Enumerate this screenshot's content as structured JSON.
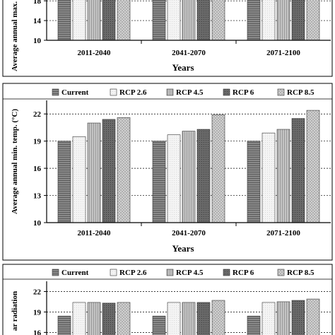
{
  "chart_data": [
    {
      "type": "bar",
      "ylabel": "Average annual max. temp. (°C)",
      "xlabel": "Years",
      "categories": [
        "2011-2040",
        "2041-2070",
        "2071-2100"
      ],
      "yticks": [
        "10",
        "14",
        "18"
      ],
      "ylim": [
        10,
        19.6
      ],
      "legend": false,
      "series": [
        {
          "name": "Current",
          "values": [
            21,
            21,
            21
          ]
        },
        {
          "name": "RCP 2.6",
          "values": [
            21,
            21,
            21
          ]
        },
        {
          "name": "RCP 4.5",
          "values": [
            21,
            21,
            21
          ]
        },
        {
          "name": "RCP 6",
          "values": [
            21,
            21,
            21
          ]
        },
        {
          "name": "RCP 8.5",
          "values": [
            21,
            21,
            21
          ]
        }
      ]
    },
    {
      "type": "bar",
      "ylabel": "Average annual min. temp. (°C)",
      "xlabel": "Years",
      "categories": [
        "2011-2040",
        "2041-2070",
        "2071-2100"
      ],
      "yticks": [
        "10",
        "13",
        "16",
        "19",
        "22"
      ],
      "ylim": [
        10,
        23.5
      ],
      "legend": true,
      "series": [
        {
          "name": "Current",
          "values": [
            19.0,
            19.0,
            19.0
          ]
        },
        {
          "name": "RCP 2.6",
          "values": [
            19.5,
            19.7,
            19.9
          ]
        },
        {
          "name": "RCP 4.5",
          "values": [
            21.0,
            20.1,
            20.3
          ]
        },
        {
          "name": "RCP 6",
          "values": [
            21.4,
            20.3,
            21.5
          ]
        },
        {
          "name": "RCP 8.5",
          "values": [
            21.6,
            21.9,
            22.4
          ]
        }
      ]
    },
    {
      "type": "bar",
      "ylabel": "ar radiation",
      "xlabel": "",
      "categories": [
        "",
        "",
        ""
      ],
      "yticks": [
        "16",
        "19",
        "22"
      ],
      "ylim": [
        15,
        23.5
      ],
      "legend": true,
      "series": [
        {
          "name": "Current",
          "values": [
            18.4,
            18.4,
            18.4
          ]
        },
        {
          "name": "RCP 2.6",
          "values": [
            20.4,
            20.4,
            20.4
          ]
        },
        {
          "name": "RCP 4.5",
          "values": [
            20.4,
            20.4,
            20.5
          ]
        },
        {
          "name": "RCP 6",
          "values": [
            20.3,
            20.4,
            20.7
          ]
        },
        {
          "name": "RCP 8.5",
          "values": [
            20.4,
            20.7,
            20.9
          ]
        }
      ]
    }
  ],
  "colors": {
    "current": "#6e6e6e",
    "rcp26": "#f0f0f0",
    "rcp45": "#b4b4b4",
    "rcp6": "#5a5a5a",
    "rcp85": "#a8a8a8"
  }
}
